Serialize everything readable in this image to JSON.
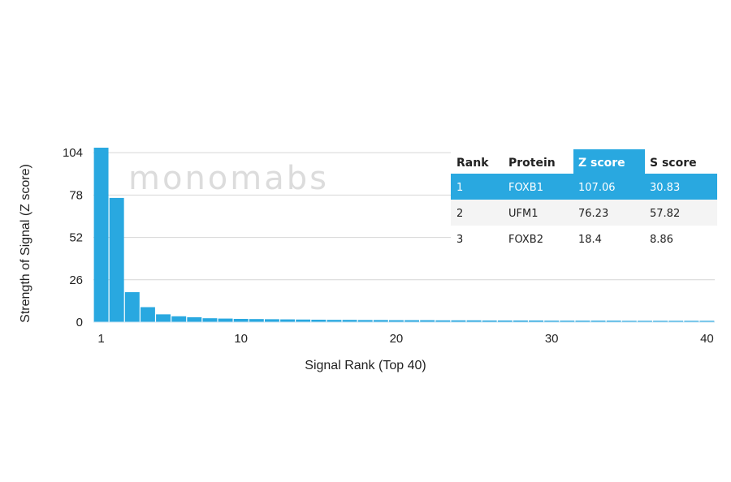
{
  "chart_data": {
    "type": "bar",
    "title": "",
    "xlabel": "Signal Rank (Top 40)",
    "ylabel": "Strength of Signal (Z score)",
    "ylim": [
      0,
      107.06
    ],
    "yticks": [
      0,
      26,
      52,
      78,
      104
    ],
    "xticks": [
      1,
      10,
      20,
      30,
      40
    ],
    "grid": true,
    "x": [
      1,
      2,
      3,
      4,
      5,
      6,
      7,
      8,
      9,
      10,
      11,
      12,
      13,
      14,
      15,
      16,
      17,
      18,
      19,
      20,
      21,
      22,
      23,
      24,
      25,
      26,
      27,
      28,
      29,
      30,
      31,
      32,
      33,
      34,
      35,
      36,
      37,
      38,
      39,
      40
    ],
    "values": [
      107.06,
      76.23,
      18.4,
      9.2,
      4.8,
      3.6,
      3.0,
      2.4,
      2.2,
      2.0,
      1.9,
      1.8,
      1.7,
      1.6,
      1.5,
      1.4,
      1.4,
      1.3,
      1.3,
      1.2,
      1.2,
      1.2,
      1.1,
      1.1,
      1.1,
      1.0,
      1.0,
      1.0,
      1.0,
      0.9,
      0.9,
      0.9,
      0.9,
      0.9,
      0.8,
      0.8,
      0.8,
      0.8,
      0.8,
      0.8
    ],
    "bar_color": "#29a8e0",
    "table": {
      "columns": [
        "Rank",
        "Protein",
        "Z score",
        "S score"
      ],
      "highlight_color": "#29a8e0",
      "rows": [
        [
          "1",
          "FOXB1",
          "107.06",
          "30.83"
        ],
        [
          "2",
          "UFM1",
          "76.23",
          "57.82"
        ],
        [
          "3",
          "FOXB2",
          "18.4",
          "8.86"
        ]
      ]
    }
  },
  "watermark": "monomabs"
}
